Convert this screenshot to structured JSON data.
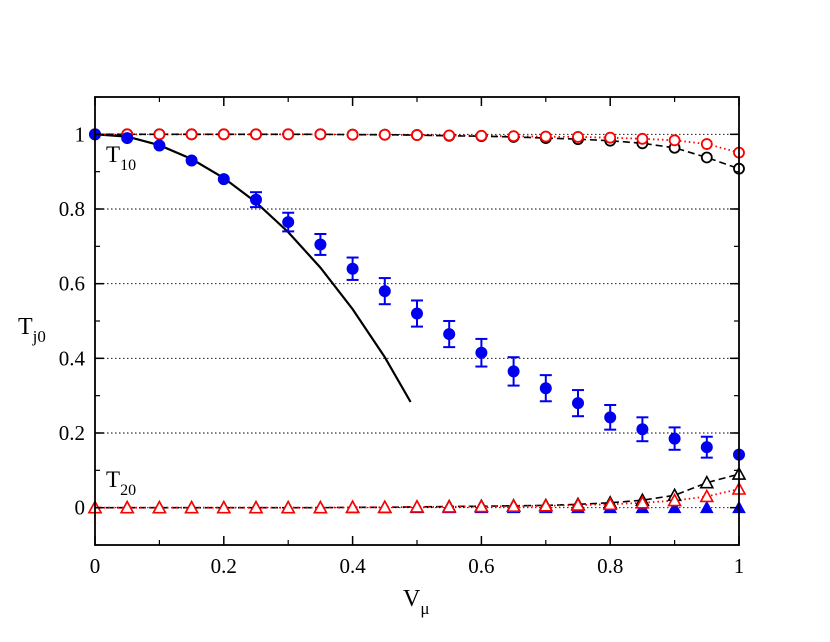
{
  "chart_data": {
    "type": "scatter",
    "xlabel": {
      "main": "V",
      "sub": "μ"
    },
    "ylabel": {
      "main": "T",
      "sub": "j0"
    },
    "xlim": [
      0,
      1
    ],
    "ylim": [
      -0.1,
      1.1
    ],
    "xticks": [
      "0",
      "0.2",
      "0.4",
      "0.6",
      "0.8",
      "1"
    ],
    "xtick_values": [
      0,
      0.2,
      0.4,
      0.6,
      0.8,
      1
    ],
    "yticks": [
      "0",
      "0.2",
      "0.4",
      "0.6",
      "0.8",
      "1"
    ],
    "ytick_values": [
      0,
      0.2,
      0.4,
      0.6,
      0.8,
      1
    ],
    "grid": "horizontal dotted",
    "annotations": [
      {
        "main": "T",
        "sub": "10",
        "x": 0.02,
        "y": 0.96
      },
      {
        "main": "T",
        "sub": "20",
        "x": 0.02,
        "y": 0.06
      }
    ],
    "series": [
      {
        "style": "solid-line",
        "color": "#000000",
        "x": [
          0,
          0.05,
          0.1,
          0.15,
          0.2,
          0.25,
          0.3,
          0.35,
          0.4,
          0.45,
          0.49
        ],
        "y": [
          1.0,
          0.994,
          0.971,
          0.934,
          0.883,
          0.818,
          0.738,
          0.643,
          0.532,
          0.403,
          0.283
        ]
      },
      {
        "style": "filled-circle-errorbar",
        "color": "#0000ee",
        "x": [
          0,
          0.05,
          0.1,
          0.15,
          0.2,
          0.25,
          0.3,
          0.35,
          0.4,
          0.45,
          0.5,
          0.55,
          0.6,
          0.65,
          0.7,
          0.75,
          0.8,
          0.85,
          0.9,
          0.95,
          1.0
        ],
        "y": [
          1.0,
          0.99,
          0.97,
          0.93,
          0.88,
          0.825,
          0.765,
          0.705,
          0.64,
          0.58,
          0.52,
          0.465,
          0.415,
          0.365,
          0.32,
          0.28,
          0.242,
          0.21,
          0.185,
          0.162,
          0.142
        ],
        "err": [
          0,
          0,
          0,
          0,
          0,
          0.02,
          0.025,
          0.028,
          0.03,
          0.035,
          0.035,
          0.035,
          0.037,
          0.038,
          0.035,
          0.035,
          0.033,
          0.032,
          0.03,
          0.028,
          0
        ]
      },
      {
        "style": "dotted-open-circle",
        "color": "#ff0000",
        "x": [
          0,
          0.05,
          0.1,
          0.15,
          0.2,
          0.25,
          0.3,
          0.35,
          0.4,
          0.45,
          0.5,
          0.55,
          0.6,
          0.65,
          0.7,
          0.75,
          0.8,
          0.85,
          0.9,
          0.95,
          1.0
        ],
        "y": [
          1.0,
          1.0,
          1.0,
          1.0,
          1.0,
          1.0,
          1.0,
          1.0,
          0.999,
          0.999,
          0.998,
          0.997,
          0.996,
          0.995,
          0.994,
          0.993,
          0.991,
          0.988,
          0.984,
          0.974,
          0.951
        ]
      },
      {
        "style": "dashed-open-circle",
        "color": "#000000",
        "x": [
          0,
          0.05,
          0.1,
          0.15,
          0.2,
          0.25,
          0.3,
          0.35,
          0.4,
          0.45,
          0.5,
          0.55,
          0.6,
          0.65,
          0.7,
          0.75,
          0.8,
          0.85,
          0.9,
          0.95,
          1.0
        ],
        "y": [
          1.0,
          1.0,
          1.0,
          1.0,
          1.0,
          1.0,
          1.0,
          1.0,
          0.999,
          0.999,
          0.998,
          0.996,
          0.995,
          0.993,
          0.99,
          0.987,
          0.983,
          0.976,
          0.964,
          0.938,
          0.908
        ]
      },
      {
        "style": "dashed-open-triangle",
        "color": "#000000",
        "x": [
          0,
          0.05,
          0.1,
          0.15,
          0.2,
          0.25,
          0.3,
          0.35,
          0.4,
          0.45,
          0.5,
          0.55,
          0.6,
          0.65,
          0.7,
          0.75,
          0.8,
          0.85,
          0.9,
          0.95,
          1.0
        ],
        "y": [
          0,
          0,
          0,
          0,
          0,
          0,
          0,
          0,
          0.001,
          0.001,
          0.002,
          0.003,
          0.004,
          0.005,
          0.006,
          0.009,
          0.013,
          0.02,
          0.033,
          0.067,
          0.09
        ]
      },
      {
        "style": "dotted-open-triangle",
        "color": "#ff0000",
        "x": [
          0,
          0.05,
          0.1,
          0.15,
          0.2,
          0.25,
          0.3,
          0.35,
          0.4,
          0.45,
          0.5,
          0.55,
          0.6,
          0.65,
          0.7,
          0.75,
          0.8,
          0.85,
          0.9,
          0.95,
          1.0
        ],
        "y": [
          0,
          0,
          0,
          0,
          0,
          0,
          0,
          0,
          0.001,
          0.001,
          0.002,
          0.002,
          0.003,
          0.004,
          0.005,
          0.007,
          0.009,
          0.013,
          0.019,
          0.03,
          0.05
        ]
      },
      {
        "style": "filled-triangle",
        "color": "#0000ee",
        "x": [
          0,
          0.05,
          0.1,
          0.15,
          0.2,
          0.25,
          0.3,
          0.35,
          0.4,
          0.45,
          0.5,
          0.55,
          0.6,
          0.65,
          0.7,
          0.75,
          0.8,
          0.85,
          0.9,
          0.95,
          1.0
        ],
        "y": [
          0,
          0,
          0,
          0,
          0,
          0,
          0,
          0,
          0,
          0,
          0,
          0,
          0,
          0,
          0,
          0,
          0,
          0,
          0,
          0,
          0
        ]
      }
    ]
  }
}
